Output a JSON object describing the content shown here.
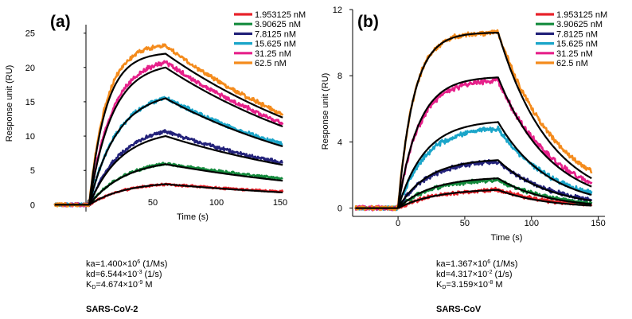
{
  "colors": {
    "series": [
      "#e8222a",
      "#138a3c",
      "#23227a",
      "#1aa5c9",
      "#e6208a",
      "#f48b1c"
    ],
    "fit": "#000000",
    "axis": "#000000"
  },
  "chart_data": [
    {
      "type": "line",
      "panel_label": "(a)",
      "xlabel": "Time (s)",
      "ylabel": "Response unit (RU)",
      "xlim": [
        -30,
        155
      ],
      "ylim": [
        -1,
        26
      ],
      "xticks": [
        0,
        50,
        100,
        150
      ],
      "yticks": [
        0,
        5,
        10,
        15,
        20,
        25
      ],
      "legend_position": "top-right",
      "association_end_s": 60,
      "series": [
        {
          "name": "1.953125 nM",
          "start_s": -27,
          "end_s": 152,
          "peak_ru": 3.0,
          "final_ru": 1.9,
          "rise_rate": 0.035,
          "noise": 0.12
        },
        {
          "name": "3.90625 nM",
          "start_s": -27,
          "end_s": 152,
          "peak_ru": 6.0,
          "final_ru": 3.8,
          "rise_rate": 0.035,
          "noise": 0.15
        },
        {
          "name": "7.8125 nM",
          "start_s": -27,
          "end_s": 152,
          "peak_ru": 10.7,
          "final_ru": 6.1,
          "rise_rate": 0.04,
          "noise": 0.2
        },
        {
          "name": "15.625 nM",
          "start_s": -27,
          "end_s": 152,
          "peak_ru": 15.6,
          "final_ru": 8.8,
          "rise_rate": 0.045,
          "noise": 0.22
        },
        {
          "name": "31.25 nM",
          "start_s": -27,
          "end_s": 152,
          "peak_ru": 20.8,
          "final_ru": 11.9,
          "rise_rate": 0.055,
          "noise": 0.25
        },
        {
          "name": "62.5 nM",
          "start_s": -27,
          "end_s": 152,
          "peak_ru": 23.2,
          "final_ru": 13.2,
          "rise_rate": 0.075,
          "noise": 0.25
        }
      ],
      "fits": [
        {
          "peak_ru": 3.0,
          "final_ru": 1.8,
          "rise_rate": 0.035
        },
        {
          "peak_ru": 5.9,
          "final_ru": 3.5,
          "rise_rate": 0.035
        },
        {
          "peak_ru": 10.0,
          "final_ru": 5.8,
          "rise_rate": 0.04
        },
        {
          "peak_ru": 15.5,
          "final_ru": 8.5,
          "rise_rate": 0.045
        },
        {
          "peak_ru": 20.0,
          "final_ru": 11.4,
          "rise_rate": 0.055
        },
        {
          "peak_ru": 22.0,
          "final_ru": 12.7,
          "rise_rate": 0.075
        }
      ]
    },
    {
      "type": "line",
      "panel_label": "(b)",
      "xlabel": "Time (s)",
      "ylabel": "Response unit (RU)",
      "xlim": [
        -40,
        155
      ],
      "ylim": [
        -0.5,
        12
      ],
      "xticks": [
        0,
        50,
        100,
        150
      ],
      "yticks": [
        0,
        4,
        8,
        12
      ],
      "legend_position": "top-right",
      "association_end_s": 75,
      "series": [
        {
          "name": "1.953125 nM",
          "start_s": -32,
          "end_s": 145,
          "peak_ru": 1.1,
          "final_ru": 0.2,
          "rise_rate": 0.035,
          "noise": 0.09
        },
        {
          "name": "3.90625 nM",
          "start_s": -32,
          "end_s": 145,
          "peak_ru": 1.7,
          "final_ru": 0.3,
          "rise_rate": 0.04,
          "noise": 0.09
        },
        {
          "name": "7.8125 nM",
          "start_s": -32,
          "end_s": 145,
          "peak_ru": 2.8,
          "final_ru": 0.5,
          "rise_rate": 0.045,
          "noise": 0.1
        },
        {
          "name": "15.625 nM",
          "start_s": -32,
          "end_s": 145,
          "peak_ru": 4.8,
          "final_ru": 0.9,
          "rise_rate": 0.05,
          "noise": 0.12
        },
        {
          "name": "31.25 nM",
          "start_s": -32,
          "end_s": 145,
          "peak_ru": 7.7,
          "final_ru": 1.5,
          "rise_rate": 0.065,
          "noise": 0.14
        },
        {
          "name": "62.5 nM",
          "start_s": -32,
          "end_s": 145,
          "peak_ru": 10.6,
          "final_ru": 2.2,
          "rise_rate": 0.085,
          "noise": 0.12
        }
      ],
      "fits": [
        {
          "peak_ru": 1.1,
          "final_ru": 0.15,
          "rise_rate": 0.035
        },
        {
          "peak_ru": 1.8,
          "final_ru": 0.25,
          "rise_rate": 0.04
        },
        {
          "peak_ru": 2.9,
          "final_ru": 0.45,
          "rise_rate": 0.045
        },
        {
          "peak_ru": 5.2,
          "final_ru": 0.8,
          "rise_rate": 0.05
        },
        {
          "peak_ru": 7.9,
          "final_ru": 1.3,
          "rise_rate": 0.065
        },
        {
          "peak_ru": 10.6,
          "final_ru": 1.8,
          "rise_rate": 0.085
        }
      ]
    }
  ],
  "annotations": [
    {
      "ka_prefix": "ka=1.400×10",
      "ka_exp": "6",
      "ka_unit": " (1/Ms)",
      "kd_prefix": "kd=6.544×10",
      "kd_exp": "-3",
      "kd_unit": " (1/s)",
      "KD_letter": "K",
      "KD_sub": "D",
      "KD_prefix": "=4.674×10",
      "KD_exp": "-9",
      "KD_unit": " M",
      "virus": "SARS-CoV-2"
    },
    {
      "ka_prefix": "ka=1.367×10",
      "ka_exp": "6",
      "ka_unit": " (1/Ms)",
      "kd_prefix": "kd=4.317×10",
      "kd_exp": "-2",
      "kd_unit": " (1/s)",
      "KD_letter": "K",
      "KD_sub": "D",
      "KD_prefix": "=3.159×10",
      "KD_exp": "-8",
      "KD_unit": " M",
      "virus": "SARS-CoV"
    }
  ]
}
